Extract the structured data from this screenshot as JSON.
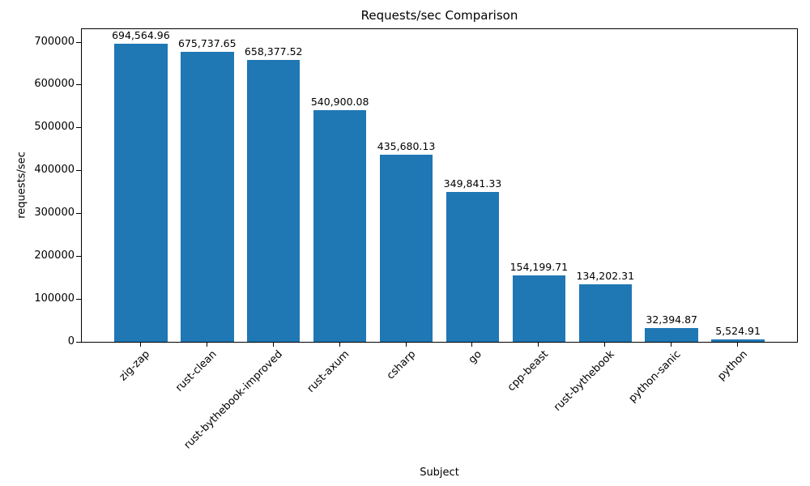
{
  "chart_data": {
    "type": "bar",
    "title": "Requests/sec Comparison",
    "xlabel": "Subject",
    "ylabel": "requests/sec",
    "categories": [
      "zig-zap",
      "rust-clean",
      "rust-bythebook-improved",
      "rust-axum",
      "csharp",
      "go",
      "cpp-beast",
      "rust-bythebook",
      "python-sanic",
      "python"
    ],
    "values": [
      694564.96,
      675737.65,
      658377.52,
      540900.08,
      435680.13,
      349841.33,
      154199.71,
      134202.31,
      32394.87,
      5524.91
    ],
    "value_labels": [
      "694,564.96",
      "675,737.65",
      "658,377.52",
      "540,900.08",
      "435,680.13",
      "349,841.33",
      "154,199.71",
      "134,202.31",
      "32,394.87",
      "5,524.91"
    ],
    "yticks": [
      0,
      100000,
      200000,
      300000,
      400000,
      500000,
      600000,
      700000
    ],
    "ylim": [
      0,
      729293
    ],
    "bar_color": "#1f77b4",
    "grid": false,
    "legend": "none",
    "x_tick_rotation_deg": 45
  }
}
